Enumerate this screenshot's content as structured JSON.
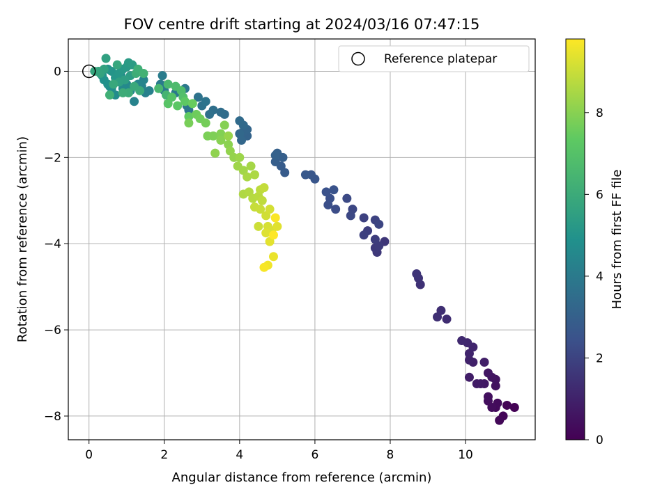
{
  "chart_data": {
    "type": "scatter",
    "title": "FOV centre drift starting at 2024/03/16 07:47:15",
    "xlabel": "Angular distance from reference (arcmin)",
    "ylabel": "Rotation from reference (arcmin)",
    "xlim": [
      -0.55,
      11.85
    ],
    "ylim": [
      -8.55,
      0.75
    ],
    "xticks": [
      0,
      2,
      4,
      6,
      8,
      10
    ],
    "yticks": [
      0,
      -2,
      -4,
      -6,
      -8
    ],
    "grid": true,
    "legend": {
      "position": "top-right",
      "entries": [
        "Reference platepar"
      ]
    },
    "reference_point": {
      "x": 0,
      "y": 0
    },
    "colorbar": {
      "label": "Hours from first FF file",
      "range": [
        0,
        9.8
      ],
      "ticks": [
        0,
        2,
        4,
        6,
        8
      ],
      "colormap": "viridis",
      "colors": [
        "#440154",
        "#3b528b",
        "#21918c",
        "#5ec962",
        "#fde725"
      ]
    },
    "points": [
      {
        "x": 11.3,
        "y": -7.8,
        "h": 0.05
      },
      {
        "x": 11.1,
        "y": -7.75,
        "h": 0.1
      },
      {
        "x": 11.0,
        "y": -8.0,
        "h": 0.15
      },
      {
        "x": 10.9,
        "y": -8.1,
        "h": 0.2
      },
      {
        "x": 10.8,
        "y": -7.8,
        "h": 0.25
      },
      {
        "x": 10.85,
        "y": -7.7,
        "h": 0.3
      },
      {
        "x": 10.7,
        "y": -7.8,
        "h": 0.35
      },
      {
        "x": 10.6,
        "y": -7.65,
        "h": 0.4
      },
      {
        "x": 10.6,
        "y": -7.55,
        "h": 0.45
      },
      {
        "x": 10.8,
        "y": -7.3,
        "h": 0.5
      },
      {
        "x": 10.8,
        "y": -7.15,
        "h": 0.55
      },
      {
        "x": 10.7,
        "y": -7.1,
        "h": 0.6
      },
      {
        "x": 10.6,
        "y": -7.0,
        "h": 0.65
      },
      {
        "x": 10.5,
        "y": -7.25,
        "h": 0.7
      },
      {
        "x": 10.4,
        "y": -7.25,
        "h": 0.75
      },
      {
        "x": 10.3,
        "y": -7.25,
        "h": 0.8
      },
      {
        "x": 10.1,
        "y": -7.1,
        "h": 0.85
      },
      {
        "x": 10.5,
        "y": -6.75,
        "h": 0.9
      },
      {
        "x": 10.2,
        "y": -6.75,
        "h": 0.95
      },
      {
        "x": 10.1,
        "y": -6.7,
        "h": 1.0
      },
      {
        "x": 10.1,
        "y": -6.55,
        "h": 1.05
      },
      {
        "x": 10.2,
        "y": -6.4,
        "h": 1.1
      },
      {
        "x": 10.05,
        "y": -6.3,
        "h": 1.15
      },
      {
        "x": 9.9,
        "y": -6.25,
        "h": 1.2
      },
      {
        "x": 9.5,
        "y": -5.75,
        "h": 1.3
      },
      {
        "x": 9.35,
        "y": -5.55,
        "h": 1.35
      },
      {
        "x": 9.25,
        "y": -5.7,
        "h": 1.4
      },
      {
        "x": 8.8,
        "y": -4.95,
        "h": 1.45
      },
      {
        "x": 8.75,
        "y": -4.8,
        "h": 1.5
      },
      {
        "x": 8.7,
        "y": -4.7,
        "h": 1.55
      },
      {
        "x": 7.85,
        "y": -3.95,
        "h": 1.6
      },
      {
        "x": 7.65,
        "y": -4.2,
        "h": 1.65
      },
      {
        "x": 7.6,
        "y": -4.1,
        "h": 1.7
      },
      {
        "x": 7.7,
        "y": -4.05,
        "h": 1.75
      },
      {
        "x": 7.6,
        "y": -3.9,
        "h": 1.8
      },
      {
        "x": 7.4,
        "y": -3.7,
        "h": 1.85
      },
      {
        "x": 7.3,
        "y": -3.8,
        "h": 1.9
      },
      {
        "x": 7.3,
        "y": -3.4,
        "h": 1.95
      },
      {
        "x": 7.6,
        "y": -3.45,
        "h": 2.0
      },
      {
        "x": 7.7,
        "y": -3.55,
        "h": 2.05
      },
      {
        "x": 7.0,
        "y": -3.2,
        "h": 2.1
      },
      {
        "x": 6.95,
        "y": -3.35,
        "h": 2.15
      },
      {
        "x": 6.85,
        "y": -2.95,
        "h": 2.2
      },
      {
        "x": 6.55,
        "y": -3.2,
        "h": 2.3
      },
      {
        "x": 6.35,
        "y": -3.1,
        "h": 2.35
      },
      {
        "x": 6.4,
        "y": -2.95,
        "h": 2.4
      },
      {
        "x": 6.3,
        "y": -2.8,
        "h": 2.45
      },
      {
        "x": 6.5,
        "y": -2.75,
        "h": 2.5
      },
      {
        "x": 6.0,
        "y": -2.5,
        "h": 2.6
      },
      {
        "x": 5.9,
        "y": -2.4,
        "h": 2.65
      },
      {
        "x": 5.75,
        "y": -2.4,
        "h": 2.7
      },
      {
        "x": 5.2,
        "y": -2.35,
        "h": 2.8
      },
      {
        "x": 5.1,
        "y": -2.2,
        "h": 2.85
      },
      {
        "x": 4.95,
        "y": -2.1,
        "h": 2.9
      },
      {
        "x": 5.15,
        "y": -2.0,
        "h": 2.95
      },
      {
        "x": 5.0,
        "y": -1.9,
        "h": 3.0
      },
      {
        "x": 4.95,
        "y": -1.95,
        "h": 3.05
      },
      {
        "x": 4.2,
        "y": -1.5,
        "h": 3.1
      },
      {
        "x": 4.1,
        "y": -1.4,
        "h": 3.15
      },
      {
        "x": 4.2,
        "y": -1.35,
        "h": 3.2
      },
      {
        "x": 4.05,
        "y": -1.6,
        "h": 3.25
      },
      {
        "x": 4.0,
        "y": -1.45,
        "h": 3.3
      },
      {
        "x": 4.1,
        "y": -1.25,
        "h": 3.35
      },
      {
        "x": 4.0,
        "y": -1.15,
        "h": 3.4
      },
      {
        "x": 3.6,
        "y": -1.0,
        "h": 3.45
      },
      {
        "x": 3.5,
        "y": -0.95,
        "h": 3.5
      },
      {
        "x": 3.3,
        "y": -0.9,
        "h": 3.55
      },
      {
        "x": 3.2,
        "y": -1.0,
        "h": 3.6
      },
      {
        "x": 3.0,
        "y": -0.8,
        "h": 3.65
      },
      {
        "x": 2.9,
        "y": -0.6,
        "h": 3.7
      },
      {
        "x": 3.1,
        "y": -0.7,
        "h": 3.75
      },
      {
        "x": 2.65,
        "y": -0.9,
        "h": 3.8
      },
      {
        "x": 2.6,
        "y": -0.8,
        "h": 3.85
      },
      {
        "x": 2.55,
        "y": -0.4,
        "h": 3.9
      },
      {
        "x": 2.3,
        "y": -0.5,
        "h": 3.95
      },
      {
        "x": 2.0,
        "y": -0.45,
        "h": 4.0
      },
      {
        "x": 1.9,
        "y": -0.3,
        "h": 4.05
      },
      {
        "x": 1.95,
        "y": -0.1,
        "h": 4.1
      },
      {
        "x": 1.5,
        "y": -0.5,
        "h": 4.2
      },
      {
        "x": 1.6,
        "y": -0.45,
        "h": 4.25
      },
      {
        "x": 1.2,
        "y": -0.7,
        "h": 4.3
      },
      {
        "x": 1.4,
        "y": -0.35,
        "h": 4.35
      },
      {
        "x": 1.45,
        "y": -0.2,
        "h": 4.4
      },
      {
        "x": 1.3,
        "y": -0.3,
        "h": 4.45
      },
      {
        "x": 1.1,
        "y": -0.45,
        "h": 4.5
      },
      {
        "x": 1.0,
        "y": -0.3,
        "h": 4.55
      },
      {
        "x": 0.9,
        "y": -0.4,
        "h": 4.6
      },
      {
        "x": 0.85,
        "y": -0.1,
        "h": 4.65
      },
      {
        "x": 0.7,
        "y": -0.55,
        "h": 4.7
      },
      {
        "x": 0.6,
        "y": -0.4,
        "h": 4.75
      },
      {
        "x": 0.55,
        "y": -0.35,
        "h": 4.8
      },
      {
        "x": 0.5,
        "y": -0.3,
        "h": 4.85
      },
      {
        "x": 0.4,
        "y": -0.2,
        "h": 4.9
      },
      {
        "x": 0.35,
        "y": -0.1,
        "h": 4.95
      },
      {
        "x": 0.5,
        "y": 0.05,
        "h": 5.0
      },
      {
        "x": 0.6,
        "y": 0.0,
        "h": 5.05
      },
      {
        "x": 0.7,
        "y": -0.15,
        "h": 5.1
      },
      {
        "x": 0.8,
        "y": -0.05,
        "h": 5.15
      },
      {
        "x": 0.9,
        "y": 0.05,
        "h": 5.2
      },
      {
        "x": 1.0,
        "y": 0.1,
        "h": 5.25
      },
      {
        "x": 1.05,
        "y": 0.2,
        "h": 5.3
      },
      {
        "x": 1.15,
        "y": 0.15,
        "h": 5.35
      },
      {
        "x": 1.1,
        "y": -0.1,
        "h": 5.4
      },
      {
        "x": 0.95,
        "y": -0.2,
        "h": 5.45
      },
      {
        "x": 0.8,
        "y": -0.25,
        "h": 5.5
      },
      {
        "x": 0.45,
        "y": 0.3,
        "h": 5.55
      },
      {
        "x": 0.4,
        "y": 0.05,
        "h": 5.6
      },
      {
        "x": 0.3,
        "y": -0.05,
        "h": 5.65
      },
      {
        "x": 0.25,
        "y": 0.0,
        "h": 5.7
      },
      {
        "x": 0.15,
        "y": 0.0,
        "h": 5.75
      },
      {
        "x": 0.75,
        "y": 0.15,
        "h": 5.8
      },
      {
        "x": 0.65,
        "y": -0.3,
        "h": 5.85
      },
      {
        "x": 1.2,
        "y": -0.35,
        "h": 5.9
      },
      {
        "x": 1.35,
        "y": -0.45,
        "h": 5.95
      },
      {
        "x": 1.05,
        "y": -0.5,
        "h": 6.0
      },
      {
        "x": 0.9,
        "y": -0.5,
        "h": 6.05
      },
      {
        "x": 1.25,
        "y": -0.05,
        "h": 6.1
      },
      {
        "x": 1.3,
        "y": 0.05,
        "h": 6.15
      },
      {
        "x": 0.55,
        "y": -0.55,
        "h": 6.2
      },
      {
        "x": 1.45,
        "y": -0.05,
        "h": 6.3
      },
      {
        "x": 2.05,
        "y": -0.55,
        "h": 6.4
      },
      {
        "x": 1.85,
        "y": -0.4,
        "h": 6.5
      },
      {
        "x": 2.1,
        "y": -0.3,
        "h": 6.6
      },
      {
        "x": 2.3,
        "y": -0.35,
        "h": 6.7
      },
      {
        "x": 2.45,
        "y": -0.45,
        "h": 6.8
      },
      {
        "x": 2.5,
        "y": -0.6,
        "h": 6.9
      },
      {
        "x": 2.2,
        "y": -0.6,
        "h": 7.0
      },
      {
        "x": 2.1,
        "y": -0.75,
        "h": 7.1
      },
      {
        "x": 2.35,
        "y": -0.8,
        "h": 7.2
      },
      {
        "x": 2.55,
        "y": -0.7,
        "h": 7.3
      },
      {
        "x": 2.65,
        "y": -1.05,
        "h": 7.4
      },
      {
        "x": 2.75,
        "y": -0.75,
        "h": 7.5
      },
      {
        "x": 2.85,
        "y": -1.0,
        "h": 7.6
      },
      {
        "x": 2.95,
        "y": -1.1,
        "h": 7.65
      },
      {
        "x": 3.1,
        "y": -1.2,
        "h": 7.7
      },
      {
        "x": 2.65,
        "y": -1.2,
        "h": 7.75
      },
      {
        "x": 3.15,
        "y": -1.5,
        "h": 7.8
      },
      {
        "x": 3.3,
        "y": -1.5,
        "h": 7.85
      },
      {
        "x": 3.5,
        "y": -1.45,
        "h": 7.9
      },
      {
        "x": 3.6,
        "y": -1.25,
        "h": 7.95
      },
      {
        "x": 3.5,
        "y": -1.6,
        "h": 8.0
      },
      {
        "x": 3.7,
        "y": -1.7,
        "h": 8.05
      },
      {
        "x": 3.35,
        "y": -1.9,
        "h": 8.1
      },
      {
        "x": 3.75,
        "y": -1.85,
        "h": 8.15
      },
      {
        "x": 3.85,
        "y": -2.0,
        "h": 8.2
      },
      {
        "x": 3.7,
        "y": -1.5,
        "h": 8.25
      },
      {
        "x": 4.0,
        "y": -2.0,
        "h": 8.3
      },
      {
        "x": 3.95,
        "y": -2.2,
        "h": 8.35
      },
      {
        "x": 4.1,
        "y": -2.3,
        "h": 8.4
      },
      {
        "x": 4.3,
        "y": -2.2,
        "h": 8.45
      },
      {
        "x": 4.2,
        "y": -2.45,
        "h": 8.5
      },
      {
        "x": 4.4,
        "y": -2.4,
        "h": 8.55
      },
      {
        "x": 4.1,
        "y": -2.85,
        "h": 8.6
      },
      {
        "x": 4.25,
        "y": -2.8,
        "h": 8.65
      },
      {
        "x": 4.35,
        "y": -2.95,
        "h": 8.7
      },
      {
        "x": 4.5,
        "y": -2.9,
        "h": 8.75
      },
      {
        "x": 4.55,
        "y": -2.75,
        "h": 8.8
      },
      {
        "x": 4.6,
        "y": -3.0,
        "h": 8.85
      },
      {
        "x": 4.65,
        "y": -2.7,
        "h": 8.9
      },
      {
        "x": 4.4,
        "y": -3.15,
        "h": 8.95
      },
      {
        "x": 4.55,
        "y": -3.2,
        "h": 9.0
      },
      {
        "x": 4.5,
        "y": -3.6,
        "h": 9.05
      },
      {
        "x": 4.7,
        "y": -3.35,
        "h": 9.1
      },
      {
        "x": 4.8,
        "y": -3.2,
        "h": 9.15
      },
      {
        "x": 4.75,
        "y": -3.6,
        "h": 9.2
      },
      {
        "x": 4.85,
        "y": -3.7,
        "h": 9.25
      },
      {
        "x": 4.7,
        "y": -3.75,
        "h": 9.3
      },
      {
        "x": 5.0,
        "y": -3.6,
        "h": 9.35
      },
      {
        "x": 4.8,
        "y": -3.95,
        "h": 9.4
      },
      {
        "x": 4.9,
        "y": -4.3,
        "h": 9.5
      },
      {
        "x": 4.75,
        "y": -4.5,
        "h": 9.6
      },
      {
        "x": 4.65,
        "y": -4.55,
        "h": 9.7
      },
      {
        "x": 4.95,
        "y": -3.4,
        "h": 9.75
      },
      {
        "x": 4.9,
        "y": -3.8,
        "h": 9.8
      }
    ]
  }
}
